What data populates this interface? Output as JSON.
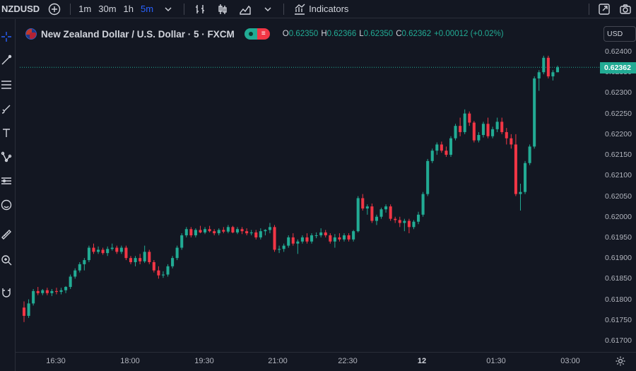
{
  "toolbar": {
    "symbol": "NZDUSD",
    "intervals": [
      "1m",
      "30m",
      "1h",
      "5m"
    ],
    "active_interval": "5m",
    "indicators_label": "Indicators"
  },
  "legend": {
    "title": "New Zealand Dollar / U.S. Dollar · 5 · FXCM",
    "o_label": "O",
    "o_value": "0.62350",
    "h_label": "H",
    "h_value": "0.62366",
    "l_label": "L",
    "l_value": "0.62350",
    "c_label": "C",
    "c_value": "0.62362",
    "change": "+0.00012 (+0.02%)"
  },
  "currency": "USD",
  "colors": {
    "up": "#22ab94",
    "down": "#f23645",
    "background": "#131722",
    "accent": "#2962ff"
  },
  "chart_data": {
    "type": "candlestick",
    "y_ticks": [
      "0.62400",
      "0.62350",
      "0.62300",
      "0.62250",
      "0.62200",
      "0.62150",
      "0.62100",
      "0.62050",
      "0.62000",
      "0.61950",
      "0.61900",
      "0.61850",
      "0.61800",
      "0.61750",
      "0.61700"
    ],
    "ylim": [
      0.6168,
      0.6242
    ],
    "x_ticks": [
      "16:30",
      "18:00",
      "19:30",
      "21:00",
      "22:30",
      "12",
      "01:30",
      "03:00"
    ],
    "last_price": "0.62362",
    "grid": false,
    "candles": [
      [
        0.6178,
        0.61795,
        0.61745,
        0.6176
      ],
      [
        0.6176,
        0.618,
        0.61755,
        0.6179
      ],
      [
        0.6179,
        0.61825,
        0.61785,
        0.6182
      ],
      [
        0.6182,
        0.6183,
        0.6181,
        0.61815
      ],
      [
        0.61815,
        0.61825,
        0.6181,
        0.61822
      ],
      [
        0.61822,
        0.61828,
        0.6181,
        0.61815
      ],
      [
        0.61815,
        0.61825,
        0.61808,
        0.6182
      ],
      [
        0.6182,
        0.61828,
        0.61812,
        0.61818
      ],
      [
        0.61818,
        0.61828,
        0.61812,
        0.61822
      ],
      [
        0.61822,
        0.61832,
        0.61815,
        0.6183
      ],
      [
        0.6183,
        0.6186,
        0.61825,
        0.61855
      ],
      [
        0.61855,
        0.61875,
        0.6185,
        0.6187
      ],
      [
        0.6187,
        0.6189,
        0.61865,
        0.61885
      ],
      [
        0.61885,
        0.619,
        0.6187,
        0.61895
      ],
      [
        0.61895,
        0.6193,
        0.6189,
        0.61925
      ],
      [
        0.61925,
        0.61935,
        0.6191,
        0.61915
      ],
      [
        0.61915,
        0.61928,
        0.6191,
        0.6192
      ],
      [
        0.6192,
        0.61925,
        0.61908,
        0.61912
      ],
      [
        0.61912,
        0.61928,
        0.61905,
        0.61922
      ],
      [
        0.61922,
        0.61935,
        0.61918,
        0.61925
      ],
      [
        0.61925,
        0.6193,
        0.6191,
        0.61915
      ],
      [
        0.61915,
        0.6193,
        0.6191,
        0.61925
      ],
      [
        0.61925,
        0.6193,
        0.61895,
        0.619
      ],
      [
        0.619,
        0.61905,
        0.61885,
        0.6189
      ],
      [
        0.6189,
        0.61905,
        0.6188,
        0.619
      ],
      [
        0.619,
        0.6191,
        0.61885,
        0.61892
      ],
      [
        0.61892,
        0.6193,
        0.61888,
        0.61915
      ],
      [
        0.61915,
        0.6192,
        0.61885,
        0.6189
      ],
      [
        0.6189,
        0.61895,
        0.61865,
        0.6187
      ],
      [
        0.6187,
        0.6188,
        0.6185,
        0.61858
      ],
      [
        0.61858,
        0.61868,
        0.61852,
        0.6186
      ],
      [
        0.6186,
        0.61885,
        0.61855,
        0.6188
      ],
      [
        0.6188,
        0.61905,
        0.61875,
        0.619
      ],
      [
        0.619,
        0.6193,
        0.61895,
        0.61925
      ],
      [
        0.61925,
        0.6196,
        0.6192,
        0.61955
      ],
      [
        0.61955,
        0.61975,
        0.6195,
        0.6197
      ],
      [
        0.6197,
        0.61975,
        0.6195,
        0.61955
      ],
      [
        0.61955,
        0.61972,
        0.6195,
        0.61968
      ],
      [
        0.61968,
        0.61978,
        0.6196,
        0.61962
      ],
      [
        0.61962,
        0.61975,
        0.61958,
        0.6197
      ],
      [
        0.6197,
        0.61978,
        0.61962,
        0.61965
      ],
      [
        0.61965,
        0.6197,
        0.61955,
        0.6196
      ],
      [
        0.6196,
        0.61972,
        0.61955,
        0.61968
      ],
      [
        0.61968,
        0.61975,
        0.6196,
        0.61964
      ],
      [
        0.61964,
        0.6198,
        0.6196,
        0.61975
      ],
      [
        0.61975,
        0.61978,
        0.6196,
        0.61962
      ],
      [
        0.61962,
        0.61975,
        0.61958,
        0.6197
      ],
      [
        0.6197,
        0.61975,
        0.61958,
        0.61965
      ],
      [
        0.61965,
        0.61972,
        0.61955,
        0.6196
      ],
      [
        0.6196,
        0.61968,
        0.61955,
        0.61962
      ],
      [
        0.61962,
        0.61968,
        0.61945,
        0.6195
      ],
      [
        0.6195,
        0.61972,
        0.61945,
        0.61965
      ],
      [
        0.61965,
        0.6197,
        0.61955,
        0.61968
      ],
      [
        0.61968,
        0.61985,
        0.6196,
        0.61975
      ],
      [
        0.61975,
        0.6198,
        0.61915,
        0.6192
      ],
      [
        0.6192,
        0.6193,
        0.61912,
        0.61922
      ],
      [
        0.61922,
        0.61935,
        0.61915,
        0.6193
      ],
      [
        0.6193,
        0.61955,
        0.61925,
        0.6195
      ],
      [
        0.6195,
        0.6196,
        0.6193,
        0.61935
      ],
      [
        0.61935,
        0.61945,
        0.6191,
        0.6194
      ],
      [
        0.6194,
        0.61955,
        0.61935,
        0.6195
      ],
      [
        0.6195,
        0.6196,
        0.61935,
        0.6194
      ],
      [
        0.6194,
        0.6196,
        0.61935,
        0.61955
      ],
      [
        0.61955,
        0.61962,
        0.61948,
        0.61955
      ],
      [
        0.61955,
        0.61972,
        0.6195,
        0.61962
      ],
      [
        0.61962,
        0.61968,
        0.6195,
        0.61955
      ],
      [
        0.61955,
        0.6196,
        0.61935,
        0.6194
      ],
      [
        0.6194,
        0.61958,
        0.61925,
        0.6195
      ],
      [
        0.6195,
        0.6196,
        0.6194,
        0.61945
      ],
      [
        0.61945,
        0.6196,
        0.6194,
        0.61955
      ],
      [
        0.61955,
        0.6196,
        0.6194,
        0.61945
      ],
      [
        0.61945,
        0.61968,
        0.6194,
        0.61965
      ],
      [
        0.61965,
        0.6205,
        0.61962,
        0.62045
      ],
      [
        0.62045,
        0.62055,
        0.62015,
        0.6202
      ],
      [
        0.6202,
        0.6203,
        0.62005,
        0.62025
      ],
      [
        0.62025,
        0.62032,
        0.61985,
        0.6199
      ],
      [
        0.6199,
        0.62005,
        0.6198,
        0.62
      ],
      [
        0.62,
        0.62022,
        0.61995,
        0.62018
      ],
      [
        0.62018,
        0.6203,
        0.6201,
        0.62025
      ],
      [
        0.62025,
        0.6203,
        0.6199,
        0.61995
      ],
      [
        0.61995,
        0.62,
        0.61985,
        0.61992
      ],
      [
        0.61992,
        0.62,
        0.61975,
        0.61985
      ],
      [
        0.61985,
        0.61995,
        0.61965,
        0.6199
      ],
      [
        0.6199,
        0.61995,
        0.6196,
        0.61975
      ],
      [
        0.61975,
        0.61992,
        0.6197,
        0.61988
      ],
      [
        0.61988,
        0.62012,
        0.61982,
        0.62005
      ],
      [
        0.62005,
        0.6206,
        0.62,
        0.62055
      ],
      [
        0.62055,
        0.6214,
        0.6205,
        0.62135
      ],
      [
        0.62135,
        0.62165,
        0.6213,
        0.6216
      ],
      [
        0.6216,
        0.6218,
        0.6215,
        0.62175
      ],
      [
        0.62175,
        0.62182,
        0.62155,
        0.6216
      ],
      [
        0.6216,
        0.6217,
        0.62145,
        0.6215
      ],
      [
        0.6215,
        0.62195,
        0.62145,
        0.6219
      ],
      [
        0.6219,
        0.62225,
        0.62185,
        0.6222
      ],
      [
        0.6222,
        0.6224,
        0.62195,
        0.62205
      ],
      [
        0.62205,
        0.6226,
        0.622,
        0.6225
      ],
      [
        0.6225,
        0.62255,
        0.6222,
        0.62228
      ],
      [
        0.62228,
        0.62232,
        0.6218,
        0.62185
      ],
      [
        0.62185,
        0.62205,
        0.6218,
        0.62198
      ],
      [
        0.62198,
        0.6223,
        0.62192,
        0.62225
      ],
      [
        0.62225,
        0.6224,
        0.6219,
        0.62195
      ],
      [
        0.62195,
        0.62218,
        0.6219,
        0.62212
      ],
      [
        0.62212,
        0.6224,
        0.62205,
        0.6223
      ],
      [
        0.6223,
        0.6224,
        0.622,
        0.62205
      ],
      [
        0.62205,
        0.62215,
        0.62175,
        0.6219
      ],
      [
        0.6219,
        0.622,
        0.62165,
        0.62175
      ],
      [
        0.62175,
        0.622,
        0.6205,
        0.62055
      ],
      [
        0.62055,
        0.6208,
        0.62015,
        0.6206
      ],
      [
        0.6206,
        0.62135,
        0.62055,
        0.6213
      ],
      [
        0.6213,
        0.62175,
        0.62125,
        0.6217
      ],
      [
        0.6217,
        0.6234,
        0.62165,
        0.62335
      ],
      [
        0.62335,
        0.62355,
        0.62305,
        0.6235
      ],
      [
        0.6235,
        0.6239,
        0.62345,
        0.62385
      ],
      [
        0.62385,
        0.6239,
        0.62335,
        0.6234
      ],
      [
        0.6234,
        0.62355,
        0.6233,
        0.6235
      ],
      [
        0.6235,
        0.62366,
        0.6235,
        0.62362
      ]
    ]
  }
}
